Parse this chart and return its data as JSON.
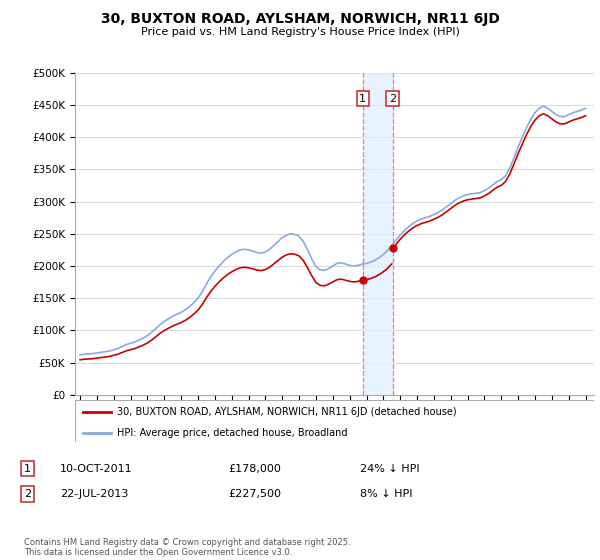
{
  "title": "30, BUXTON ROAD, AYLSHAM, NORWICH, NR11 6JD",
  "subtitle": "Price paid vs. HM Land Registry's House Price Index (HPI)",
  "ytick_values": [
    0,
    50000,
    100000,
    150000,
    200000,
    250000,
    300000,
    350000,
    400000,
    450000,
    500000
  ],
  "ylim": [
    0,
    500000
  ],
  "xlim_start": 1994.7,
  "xlim_end": 2025.5,
  "legend_line1": "30, BUXTON ROAD, AYLSHAM, NORWICH, NR11 6JD (detached house)",
  "legend_line2": "HPI: Average price, detached house, Broadland",
  "annotation1_label": "1",
  "annotation1_date": "10-OCT-2011",
  "annotation1_price": "£178,000",
  "annotation1_hpi": "24% ↓ HPI",
  "annotation2_label": "2",
  "annotation2_date": "22-JUL-2013",
  "annotation2_price": "£227,500",
  "annotation2_hpi": "8% ↓ HPI",
  "footer": "Contains HM Land Registry data © Crown copyright and database right 2025.\nThis data is licensed under the Open Government Licence v3.0.",
  "line_color_red": "#cc0000",
  "line_color_blue": "#88aadd",
  "shade_color": "#ddeeff",
  "vline_color": "#dd8888",
  "hpi_years": [
    1995.0,
    1995.25,
    1995.5,
    1995.75,
    1996.0,
    1996.25,
    1996.5,
    1996.75,
    1997.0,
    1997.25,
    1997.5,
    1997.75,
    1998.0,
    1998.25,
    1998.5,
    1998.75,
    1999.0,
    1999.25,
    1999.5,
    1999.75,
    2000.0,
    2000.25,
    2000.5,
    2000.75,
    2001.0,
    2001.25,
    2001.5,
    2001.75,
    2002.0,
    2002.25,
    2002.5,
    2002.75,
    2003.0,
    2003.25,
    2003.5,
    2003.75,
    2004.0,
    2004.25,
    2004.5,
    2004.75,
    2005.0,
    2005.25,
    2005.5,
    2005.75,
    2006.0,
    2006.25,
    2006.5,
    2006.75,
    2007.0,
    2007.25,
    2007.5,
    2007.75,
    2008.0,
    2008.25,
    2008.5,
    2008.75,
    2009.0,
    2009.25,
    2009.5,
    2009.75,
    2010.0,
    2010.25,
    2010.5,
    2010.75,
    2011.0,
    2011.25,
    2011.5,
    2011.75,
    2012.0,
    2012.25,
    2012.5,
    2012.75,
    2013.0,
    2013.25,
    2013.5,
    2013.75,
    2014.0,
    2014.25,
    2014.5,
    2014.75,
    2015.0,
    2015.25,
    2015.5,
    2015.75,
    2016.0,
    2016.25,
    2016.5,
    2016.75,
    2017.0,
    2017.25,
    2017.5,
    2017.75,
    2018.0,
    2018.25,
    2018.5,
    2018.75,
    2019.0,
    2019.25,
    2019.5,
    2019.75,
    2020.0,
    2020.25,
    2020.5,
    2020.75,
    2021.0,
    2021.25,
    2021.5,
    2021.75,
    2022.0,
    2022.25,
    2022.5,
    2022.75,
    2023.0,
    2023.25,
    2023.5,
    2023.75,
    2024.0,
    2024.25,
    2024.5,
    2024.75,
    2025.0
  ],
  "hpi_values": [
    62000,
    63000,
    63500,
    64000,
    65000,
    66000,
    67000,
    68000,
    70000,
    72000,
    75000,
    78000,
    80000,
    82000,
    85000,
    88000,
    92000,
    97000,
    103000,
    109000,
    114000,
    118000,
    122000,
    125000,
    128000,
    132000,
    137000,
    143000,
    150000,
    160000,
    172000,
    183000,
    192000,
    200000,
    207000,
    213000,
    218000,
    222000,
    225000,
    226000,
    225000,
    223000,
    221000,
    220000,
    222000,
    226000,
    232000,
    238000,
    244000,
    248000,
    250000,
    249000,
    246000,
    238000,
    225000,
    211000,
    199000,
    194000,
    193000,
    196000,
    200000,
    204000,
    205000,
    203000,
    201000,
    200000,
    201000,
    203000,
    204000,
    206000,
    209000,
    213000,
    218000,
    224000,
    232000,
    240000,
    248000,
    255000,
    261000,
    266000,
    270000,
    273000,
    275000,
    277000,
    280000,
    283000,
    287000,
    292000,
    297000,
    302000,
    306000,
    309000,
    311000,
    312000,
    313000,
    314000,
    317000,
    321000,
    326000,
    331000,
    334000,
    340000,
    352000,
    368000,
    385000,
    400000,
    415000,
    428000,
    438000,
    445000,
    448000,
    445000,
    440000,
    435000,
    432000,
    432000,
    435000,
    438000,
    440000,
    442000,
    445000
  ],
  "price_paid_years": [
    2011.78,
    2013.55
  ],
  "price_paid_values": [
    178000,
    227500
  ]
}
